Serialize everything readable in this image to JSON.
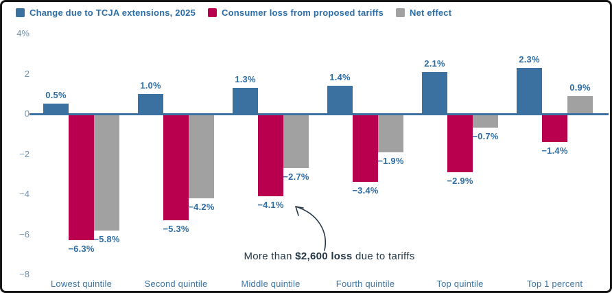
{
  "colors": {
    "tcja_blue": "#3a71a0",
    "tariff_crimson": "#b8004e",
    "net_gray": "#a1a1a1",
    "axis_line": "#3a71a0",
    "tick_text": "#6f94b3",
    "data_label_text": "#2e6da3",
    "category_text": "#3a74a6",
    "legend_text": "#2d6da6",
    "annotation_text": "#243746"
  },
  "chart_data": {
    "type": "bar",
    "title": "",
    "xlabel": "",
    "ylabel": "",
    "ylim": [
      -8,
      4
    ],
    "grid": false,
    "legend_position": "top-left",
    "categories": [
      "Lowest quintile",
      "Second quintile",
      "Middle quintile",
      "Fourth quintile",
      "Top quintile",
      "Top 1 percent"
    ],
    "series": [
      {
        "name": "Change due to TCJA extensions, 2025",
        "color": "#3a71a0",
        "values": [
          0.5,
          1.0,
          1.3,
          1.4,
          2.1,
          2.3
        ],
        "labels": [
          "0.5%",
          "1.0%",
          "1.3%",
          "1.4%",
          "2.1%",
          "2.3%"
        ]
      },
      {
        "name": "Consumer loss from proposed tariffs",
        "color": "#b8004e",
        "values": [
          -6.3,
          -5.3,
          -4.1,
          -3.4,
          -2.9,
          -1.4
        ],
        "labels": [
          "−6.3%",
          "−5.3%",
          "−4.1%",
          "−3.4%",
          "−2.9%",
          "−1.4%"
        ]
      },
      {
        "name": "Net effect",
        "color": "#a1a1a1",
        "values": [
          -5.8,
          -4.2,
          -2.7,
          -1.9,
          -0.7,
          0.9
        ],
        "labels": [
          "−5.8%",
          "−4.2%",
          "−2.7%",
          "−1.9%",
          "−0.7%",
          "0.9%"
        ]
      }
    ],
    "yticks": [
      {
        "value": 4,
        "label": "4%"
      },
      {
        "value": 2,
        "label": "2"
      },
      {
        "value": 0,
        "label": "0"
      },
      {
        "value": -2,
        "label": "−2"
      },
      {
        "value": -4,
        "label": "−4"
      },
      {
        "value": -6,
        "label": "−6"
      },
      {
        "value": -8,
        "label": "−8"
      }
    ],
    "annotation": {
      "prefix": "More than ",
      "bold": "$2,600 loss",
      "suffix": " due to tariffs",
      "target": "Middle quintile tariff bar (−4.1%)"
    }
  }
}
